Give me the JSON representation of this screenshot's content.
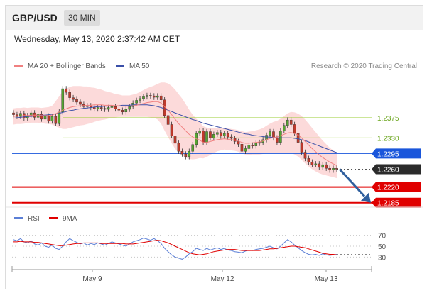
{
  "header": {
    "pair": "GBP/USD",
    "timeframe": "30 MIN"
  },
  "timestamp": "Wednesday, May 13, 2020 2:37:42 AM CET",
  "legend": {
    "ma20": "MA 20 + Bollinger Bands",
    "ma50": "MA 50",
    "credit": "Research © 2020 Trading Central",
    "rsi": "RSI",
    "ma9": "9MA"
  },
  "colors": {
    "ma20": "#f08080",
    "ma50": "#3a4fa8",
    "band": "#fbd3d3",
    "resistance": "#9acd32",
    "pivot": "#1a56db",
    "support": "#e00000",
    "price_tag": "#2b2b2b",
    "candle_up": "#55a630",
    "candle_down": "#c0392b",
    "arrow": "#2f5f9e"
  },
  "chart_data": [
    {
      "type": "line",
      "title": "",
      "x_labels": [
        "May 9",
        "May 12",
        "May 13"
      ],
      "levels": [
        {
          "value": "1.2375",
          "kind": "resistance"
        },
        {
          "value": "1.2330",
          "kind": "resistance"
        },
        {
          "value": "1.2295",
          "kind": "pivot"
        },
        {
          "value": "1.2260",
          "kind": "current"
        },
        {
          "value": "1.2220",
          "kind": "support"
        },
        {
          "value": "1.2185",
          "kind": "support"
        }
      ],
      "ylim": [
        1.2175,
        1.2475
      ],
      "price_series": [
        1.2382,
        1.2378,
        1.2385,
        1.2374,
        1.238,
        1.2386,
        1.2376,
        1.2383,
        1.2372,
        1.2379,
        1.2368,
        1.2378,
        1.2362,
        1.2388,
        1.244,
        1.2432,
        1.242,
        1.2416,
        1.241,
        1.2405,
        1.24,
        1.2402,
        1.2398,
        1.2395,
        1.2398,
        1.2396,
        1.2394,
        1.2398,
        1.24,
        1.2395,
        1.2392,
        1.2388,
        1.2394,
        1.24,
        1.2408,
        1.2414,
        1.2418,
        1.2422,
        1.2425,
        1.2424,
        1.2421,
        1.2424,
        1.2415,
        1.238,
        1.236,
        1.2335,
        1.2318,
        1.23,
        1.2294,
        1.2288,
        1.23,
        1.2315,
        1.234,
        1.2346,
        1.232,
        1.2344,
        1.233,
        1.2338,
        1.2342,
        1.2334,
        1.234,
        1.2332,
        1.2329,
        1.2322,
        1.2316,
        1.23,
        1.2306,
        1.2314,
        1.2312,
        1.2318,
        1.232,
        1.2326,
        1.2336,
        1.2344,
        1.233,
        1.232,
        1.2346,
        1.2358,
        1.237,
        1.236,
        1.234,
        1.232,
        1.2298,
        1.2284,
        1.2276,
        1.227,
        1.2272,
        1.2264,
        1.227,
        1.2262,
        1.2258,
        1.2262,
        1.226
      ],
      "ma20_series": [
        1.2378,
        1.2379,
        1.2379,
        1.238,
        1.238,
        1.2381,
        1.2381,
        1.2381,
        1.238,
        1.238,
        1.238,
        1.2381,
        1.2384,
        1.2388,
        1.2392,
        1.2395,
        1.2398,
        1.24,
        1.2401,
        1.2402,
        1.2402,
        1.2403,
        1.2403,
        1.2404,
        1.2404,
        1.2404,
        1.2403,
        1.2403,
        1.2403,
        1.2402,
        1.2402,
        1.2401,
        1.2401,
        1.2401,
        1.2402,
        1.2403,
        1.2405,
        1.2407,
        1.2409,
        1.241,
        1.2411,
        1.2411,
        1.2408,
        1.24,
        1.2392,
        1.2382,
        1.2372,
        1.2362,
        1.2354,
        1.2346,
        1.2338,
        1.2332,
        1.2328,
        1.2325,
        1.232,
        1.232,
        1.2322,
        1.2324,
        1.2326,
        1.2327,
        1.2328,
        1.2327,
        1.2326,
        1.2325,
        1.2323,
        1.232,
        1.2318,
        1.2318,
        1.2319,
        1.232,
        1.2321,
        1.2323,
        1.2326,
        1.2329,
        1.2331,
        1.2332,
        1.2335,
        1.2338,
        1.2341,
        1.2342,
        1.234,
        1.2336,
        1.233,
        1.2322,
        1.2314,
        1.2306,
        1.2299,
        1.2292,
        1.2286,
        1.2281,
        1.2276,
        1.2272,
        1.2268
      ],
      "ma50_series": [
        1.2374,
        1.2375,
        1.2376,
        1.2377,
        1.2378,
        1.2378,
        1.2379,
        1.238,
        1.2381,
        1.2381,
        1.2382,
        1.2383,
        1.2384,
        1.2385,
        1.2387,
        1.2389,
        1.2391,
        1.2392,
        1.2394,
        1.2395,
        1.2396,
        1.2397,
        1.2398,
        1.2399,
        1.24,
        1.24,
        1.2401,
        1.2401,
        1.2402,
        1.2402,
        1.2402,
        1.2403,
        1.2403,
        1.2403,
        1.2404,
        1.2404,
        1.2404,
        1.2404,
        1.2404,
        1.2403,
        1.2402,
        1.24,
        1.2398,
        1.2395,
        1.2392,
        1.2389,
        1.2386,
        1.2383,
        1.238,
        1.2377,
        1.2374,
        1.2371,
        1.2369,
        1.2366,
        1.2363,
        1.2361,
        1.2359,
        1.2357,
        1.2355,
        1.2353,
        1.2351,
        1.2349,
        1.2347,
        1.2345,
        1.2343,
        1.2341,
        1.2339,
        1.2338,
        1.2336,
        1.2335,
        1.2334,
        1.2333,
        1.2332,
        1.2332,
        1.2331,
        1.233,
        1.233,
        1.233,
        1.233,
        1.233,
        1.2329,
        1.2328,
        1.2326,
        1.2324,
        1.2321,
        1.2318,
        1.2315,
        1.2312,
        1.2309,
        1.2306,
        1.2303,
        1.23,
        1.2297
      ],
      "band_width_series": [
        0.0018,
        0.0018,
        0.0018,
        0.0018,
        0.0017,
        0.0017,
        0.0017,
        0.0017,
        0.0017,
        0.0018,
        0.0019,
        0.0021,
        0.0028,
        0.0035,
        0.0042,
        0.0045,
        0.0046,
        0.0046,
        0.0045,
        0.0044,
        0.0043,
        0.0042,
        0.004,
        0.0038,
        0.0036,
        0.0034,
        0.0032,
        0.003,
        0.0028,
        0.0026,
        0.0025,
        0.0024,
        0.0024,
        0.0024,
        0.0025,
        0.0026,
        0.0028,
        0.003,
        0.0032,
        0.0034,
        0.0036,
        0.004,
        0.0046,
        0.0054,
        0.006,
        0.0064,
        0.0066,
        0.0066,
        0.0064,
        0.006,
        0.0055,
        0.005,
        0.0045,
        0.004,
        0.0036,
        0.0033,
        0.003,
        0.0028,
        0.0026,
        0.0025,
        0.0024,
        0.0024,
        0.0024,
        0.0024,
        0.0024,
        0.0025,
        0.0025,
        0.0026,
        0.0026,
        0.0027,
        0.0028,
        0.0029,
        0.0031,
        0.0033,
        0.0035,
        0.0036,
        0.0038,
        0.0041,
        0.0044,
        0.0046,
        0.0047,
        0.0048,
        0.0049,
        0.0049,
        0.0048,
        0.0046,
        0.0044,
        0.0041,
        0.0038,
        0.0035,
        0.0032,
        0.003,
        0.0028
      ],
      "forecast": {
        "from": 1.226,
        "to": 1.2185
      }
    },
    {
      "type": "line",
      "title": "",
      "ylim": [
        20,
        80
      ],
      "y_ticks": [
        70,
        50,
        30
      ],
      "rsi_series": [
        62,
        60,
        64,
        58,
        56,
        60,
        54,
        52,
        56,
        50,
        48,
        52,
        46,
        44,
        50,
        58,
        64,
        60,
        57,
        54,
        56,
        52,
        55,
        53,
        56,
        54,
        52,
        55,
        58,
        56,
        54,
        52,
        50,
        54,
        58,
        60,
        62,
        65,
        63,
        61,
        64,
        60,
        55,
        46,
        40,
        34,
        30,
        28,
        26,
        30,
        36,
        40,
        46,
        44,
        42,
        46,
        43,
        45,
        47,
        44,
        46,
        43,
        42,
        40,
        39,
        38,
        41,
        43,
        42,
        44,
        45,
        46,
        48,
        50,
        47,
        45,
        50,
        56,
        62,
        58,
        52,
        47,
        42,
        38,
        35,
        34,
        35,
        33,
        36,
        34,
        33,
        34,
        35
      ],
      "ma9_series": [
        58,
        58,
        59,
        58,
        58,
        58,
        57,
        57,
        56,
        55,
        54,
        53,
        52,
        51,
        51,
        52,
        53,
        54,
        55,
        55,
        56,
        56,
        56,
        56,
        56,
        55,
        55,
        55,
        55,
        55,
        55,
        55,
        54,
        54,
        54,
        55,
        56,
        57,
        58,
        59,
        60,
        61,
        60,
        58,
        56,
        53,
        50,
        47,
        44,
        41,
        38,
        36,
        35,
        34,
        35,
        36,
        38,
        40,
        41,
        42,
        43,
        44,
        44,
        44,
        43,
        42,
        42,
        42,
        42,
        42,
        42,
        43,
        44,
        45,
        45,
        46,
        47,
        48,
        49,
        50,
        50,
        49,
        48,
        47,
        45,
        43,
        41,
        39,
        37,
        36,
        35,
        35,
        34
      ]
    }
  ]
}
